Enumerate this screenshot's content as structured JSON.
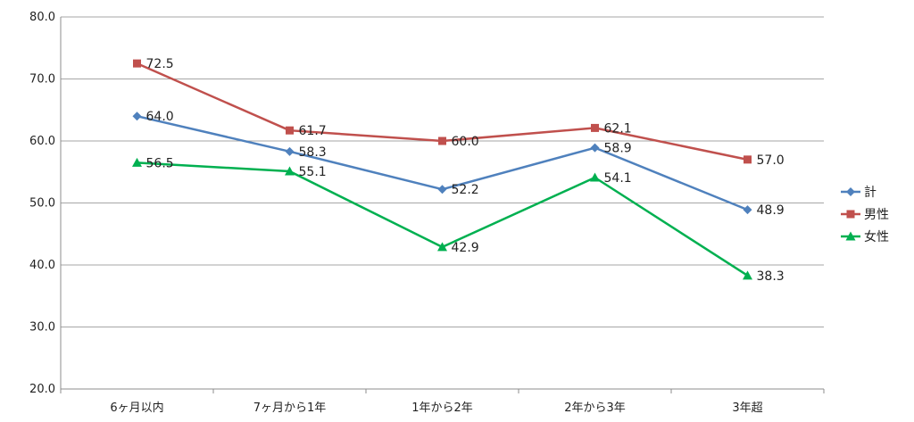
{
  "chart_data": {
    "type": "line",
    "categories": [
      "6ヶ月以内",
      "7ヶ月から1年",
      "1年から2年",
      "2年から3年",
      "3年超"
    ],
    "series": [
      {
        "name": "計",
        "values": [
          64.0,
          58.3,
          52.2,
          58.9,
          48.9
        ],
        "color": "#4F81BD",
        "marker": "diamond"
      },
      {
        "name": "男性",
        "values": [
          72.5,
          61.7,
          60.0,
          62.1,
          57.0
        ],
        "color": "#C0504D",
        "marker": "square"
      },
      {
        "name": "女性",
        "values": [
          56.5,
          55.1,
          42.9,
          54.1,
          38.3
        ],
        "color": "#00B050",
        "marker": "triangle"
      }
    ],
    "y_ticks": [
      "20.0",
      "30.0",
      "40.0",
      "50.0",
      "60.0",
      "70.0",
      "80.0"
    ],
    "ylim": [
      20,
      80
    ],
    "grid": true,
    "legend_position": "right",
    "value_labels": [
      [
        "64.0",
        "58.3",
        "52.2",
        "58.9",
        "48.9"
      ],
      [
        "72.5",
        "61.7",
        "60.0",
        "62.1",
        "57.0"
      ],
      [
        "56.5",
        "55.1",
        "42.9",
        "54.1",
        "38.3"
      ]
    ]
  }
}
